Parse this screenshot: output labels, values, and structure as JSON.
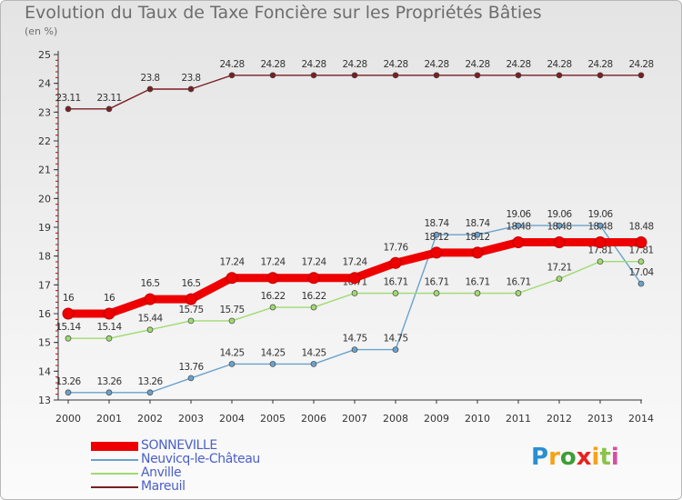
{
  "chart_data": {
    "type": "line",
    "title": "Evolution du Taux de Taxe Foncière sur les Propriétés Bâties",
    "subtitle": "(en %)",
    "x": [
      "2000",
      "2001",
      "2002",
      "2003",
      "2004",
      "2005",
      "2006",
      "2007",
      "2008",
      "2009",
      "2010",
      "2011",
      "2012",
      "2013",
      "2014"
    ],
    "y_ticks": [
      13,
      14,
      15,
      16,
      17,
      18,
      19,
      20,
      21,
      22,
      23,
      24,
      25
    ],
    "ylim": [
      13,
      25
    ],
    "grid": false,
    "series": [
      {
        "name": "Mareuil",
        "color": "#7a1f22",
        "values": [
          23.11,
          23.11,
          23.8,
          23.8,
          24.28,
          24.28,
          24.28,
          24.28,
          24.28,
          24.28,
          24.28,
          24.28,
          24.28,
          24.28,
          24.28
        ],
        "labels": [
          "23.11",
          "23.11",
          "23.8",
          "23.8",
          "24.28",
          "24.28",
          "24.28",
          "24.28",
          "24.28",
          "24.28",
          "24.28",
          "24.28",
          "24.28",
          "24.28",
          "24.28"
        ]
      },
      {
        "name": "Neuvicq-le-Château",
        "color": "#6aa2cc",
        "values": [
          13.26,
          13.26,
          13.26,
          13.76,
          14.25,
          14.25,
          14.25,
          14.75,
          14.75,
          18.74,
          18.74,
          19.06,
          19.06,
          19.06,
          17.04
        ],
        "labels": [
          "13.26",
          "13.26",
          "13.26",
          "13.76",
          "14.25",
          "14.25",
          "14.25",
          "14.75",
          "14.75",
          "18.74",
          "18.74",
          "19.06",
          "19.06",
          "19.06",
          "17.04"
        ]
      },
      {
        "name": "Anville",
        "color": "#9fdb6f",
        "values": [
          15.14,
          15.14,
          15.44,
          15.75,
          15.75,
          16.22,
          16.22,
          16.71,
          16.71,
          16.71,
          16.71,
          16.71,
          17.21,
          17.81,
          17.81
        ],
        "labels": [
          "15.14",
          "15.14",
          "15.44",
          "15.75",
          "15.75",
          "16.22",
          "16.22",
          "16.71",
          "16.71",
          "16.71",
          "16.71",
          "16.71",
          "17.21",
          "17.81",
          "17.81"
        ]
      },
      {
        "name": "SONNEVILLE",
        "color": "#ee0000",
        "values": [
          16,
          16,
          16.5,
          16.5,
          17.24,
          17.24,
          17.24,
          17.24,
          17.76,
          18.12,
          18.12,
          18.48,
          18.48,
          18.48,
          18.48
        ],
        "labels": [
          "16",
          "16",
          "16.5",
          "16.5",
          "17.24",
          "17.24",
          "17.24",
          "17.24",
          "17.76",
          "18.12",
          "18.12",
          "18.48",
          "18.48",
          "18.48",
          "18.48"
        ]
      }
    ],
    "legend": {
      "placement": "bottom-left",
      "items": [
        "SONNEVILLE",
        "Neuvicq-le-Château",
        "Anville",
        "Mareuil"
      ]
    }
  },
  "brand": {
    "letters": [
      "P",
      "r",
      "o",
      "x",
      "i",
      "t",
      "i"
    ],
    "colors": [
      "#2a8fd1",
      "#f5a21b",
      "#3d9e35",
      "#e6231f",
      "#f5a21b",
      "#8bc34a",
      "#d84f9e"
    ]
  }
}
